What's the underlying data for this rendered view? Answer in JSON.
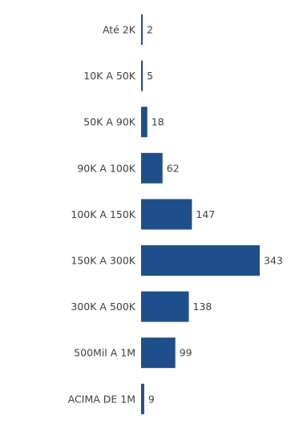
{
  "chart_data": {
    "type": "bar",
    "orientation": "horizontal",
    "categories": [
      "Até 2K",
      "10K A 50K",
      "50K A 90K",
      "90K A 100K",
      "100K A 150K",
      "150K A 300K",
      "300K A 500K",
      "500Mil A 1M",
      "ACIMA DE 1M"
    ],
    "values": [
      2,
      5,
      18,
      62,
      147,
      343,
      138,
      99,
      9
    ],
    "title": "",
    "xlabel": "",
    "ylabel": "",
    "data_labels": true,
    "grid": false,
    "legend": "none",
    "colors": {
      "bar": "#1f4e8c",
      "label_text": "#404040"
    }
  }
}
